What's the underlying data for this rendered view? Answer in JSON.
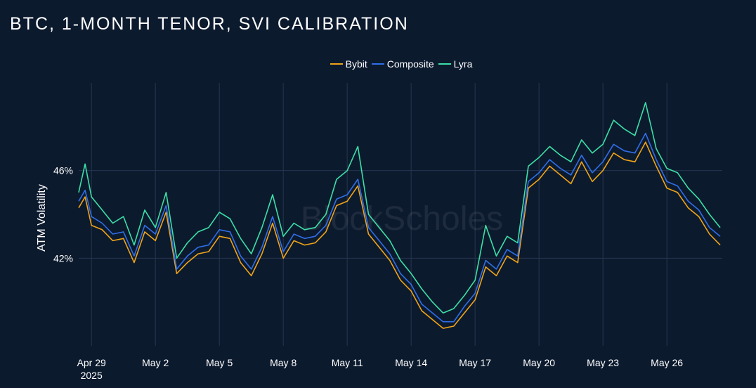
{
  "page": {
    "title": "BTC, 1-MONTH TENOR, SVI CALIBRATION",
    "watermark": "BlockScholes"
  },
  "colors": {
    "background": "#0c1a2e",
    "grid": "#26364f",
    "Bybit": "#f0a417",
    "Composite": "#2f6fe8",
    "Lyra": "#3be0a6"
  },
  "chart_data": {
    "type": "line",
    "title": "BTC, 1-MONTH TENOR, SVI CALIBRATION",
    "xlabel": "",
    "ylabel": "ATM Volatility",
    "x_ticks": [
      {
        "label": "Apr 29",
        "sublabel": "2025",
        "day": 0
      },
      {
        "label": "May 2",
        "sublabel": "",
        "day": 3
      },
      {
        "label": "May 5",
        "sublabel": "",
        "day": 6
      },
      {
        "label": "May 8",
        "sublabel": "",
        "day": 9
      },
      {
        "label": "May 11",
        "sublabel": "",
        "day": 12
      },
      {
        "label": "May 14",
        "sublabel": "",
        "day": 15
      },
      {
        "label": "May 17",
        "sublabel": "",
        "day": 18
      },
      {
        "label": "May 20",
        "sublabel": "",
        "day": 21
      },
      {
        "label": "May 23",
        "sublabel": "",
        "day": 24
      },
      {
        "label": "May 26",
        "sublabel": "",
        "day": 27
      }
    ],
    "y_ticks": [
      {
        "label": "42%",
        "value": 42
      },
      {
        "label": "46%",
        "value": 46
      }
    ],
    "xlim": [
      -0.6,
      29.6
    ],
    "ylim": [
      38.0,
      50.0
    ],
    "grid": true,
    "legend_position": "top-center",
    "x_days": [
      -0.6,
      -0.3,
      0,
      0.5,
      1,
      1.5,
      2,
      2.5,
      3,
      3.5,
      4,
      4.5,
      5,
      5.5,
      6,
      6.5,
      7,
      7.5,
      8,
      8.5,
      9,
      9.5,
      10,
      10.5,
      11,
      11.5,
      12,
      12.5,
      13,
      13.5,
      14,
      14.5,
      15,
      15.5,
      16,
      16.5,
      17,
      17.5,
      18,
      18.5,
      19,
      19.5,
      20,
      20.5,
      21,
      21.5,
      22,
      22.5,
      23,
      23.5,
      24,
      24.5,
      25,
      25.5,
      26,
      26.5,
      27,
      27.5,
      28,
      28.5,
      29,
      29.5
    ],
    "series": [
      {
        "name": "Bybit",
        "values": [
          44.3,
          44.8,
          43.5,
          43.3,
          42.8,
          42.9,
          41.8,
          43.2,
          42.8,
          44.1,
          41.3,
          41.8,
          42.2,
          42.3,
          43.0,
          42.9,
          41.8,
          41.2,
          42.2,
          43.6,
          42.0,
          42.8,
          42.6,
          42.7,
          43.2,
          44.4,
          44.6,
          45.3,
          43.1,
          42.5,
          41.9,
          41.0,
          40.5,
          39.6,
          39.2,
          38.8,
          38.9,
          39.5,
          40.1,
          41.6,
          41.2,
          42.1,
          41.8,
          45.2,
          45.6,
          46.2,
          45.8,
          45.4,
          46.4,
          45.5,
          46.0,
          46.8,
          46.5,
          46.4,
          47.3,
          46.2,
          45.2,
          45.0,
          44.3,
          43.9,
          43.1,
          42.6
        ]
      },
      {
        "name": "Composite",
        "values": [
          44.6,
          45.1,
          43.9,
          43.6,
          43.1,
          43.2,
          42.1,
          43.5,
          43.1,
          44.4,
          41.5,
          42.1,
          42.5,
          42.6,
          43.3,
          43.2,
          42.1,
          41.5,
          42.5,
          43.9,
          42.3,
          43.1,
          42.9,
          43.0,
          43.5,
          44.7,
          44.9,
          45.6,
          43.4,
          42.8,
          42.2,
          41.3,
          40.8,
          39.9,
          39.5,
          39.1,
          39.1,
          39.8,
          40.4,
          41.9,
          41.5,
          42.4,
          42.1,
          45.5,
          45.9,
          46.5,
          46.1,
          45.8,
          46.7,
          45.9,
          46.4,
          47.2,
          46.9,
          46.8,
          47.7,
          46.5,
          45.5,
          45.3,
          44.6,
          44.2,
          43.4,
          43.0
        ]
      },
      {
        "name": "Lyra",
        "values": [
          45.0,
          46.3,
          44.8,
          44.2,
          43.6,
          43.9,
          42.6,
          44.2,
          43.4,
          45.0,
          42.0,
          42.7,
          43.2,
          43.4,
          44.1,
          43.8,
          42.9,
          42.2,
          43.4,
          44.9,
          43.0,
          43.6,
          43.3,
          43.4,
          44.0,
          45.6,
          46.0,
          47.1,
          44.0,
          43.4,
          42.8,
          41.9,
          41.3,
          40.6,
          40.0,
          39.5,
          39.7,
          40.3,
          41.0,
          43.5,
          42.1,
          43.0,
          42.7,
          46.2,
          46.6,
          47.1,
          46.7,
          46.4,
          47.4,
          46.8,
          47.2,
          48.3,
          47.9,
          47.6,
          49.1,
          47.0,
          46.1,
          45.9,
          45.2,
          44.7,
          44.0,
          43.4
        ]
      }
    ]
  }
}
